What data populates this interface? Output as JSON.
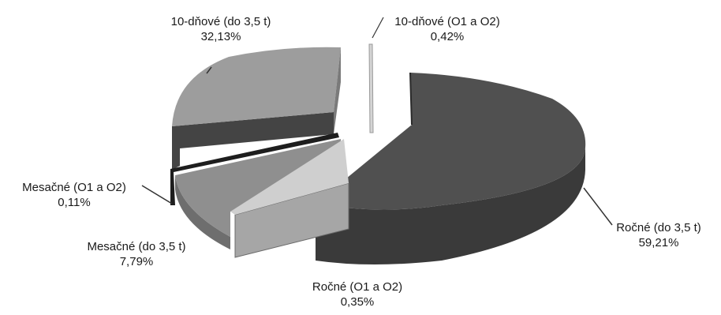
{
  "chart_data": {
    "type": "pie",
    "style": "3d-exploded",
    "slices": [
      {
        "name": "Ročné (do 3,5 t)",
        "value_label": "59,21%",
        "value": 59.21,
        "color": "#4a4a4a"
      },
      {
        "name": "Ročné (O1 a O2)",
        "value_label": "0,35%",
        "value": 0.35,
        "color": "#bdbdbd"
      },
      {
        "name": "Mesačné (do 3,5 t)",
        "value_label": "7,79%",
        "value": 7.79,
        "color": "#8e8e8e"
      },
      {
        "name": "Mesačné (O1 a O2)",
        "value_label": "0,11%",
        "value": 0.11,
        "color": "#1e1e1e"
      },
      {
        "name": "10-dňové (do 3,5 t)",
        "value_label": "32,13%",
        "value": 32.13,
        "color": "#999999"
      },
      {
        "name": "10-dňové (O1 a O2)",
        "value_label": "0,42%",
        "value": 0.42,
        "color": "#cfcfcf"
      }
    ]
  }
}
